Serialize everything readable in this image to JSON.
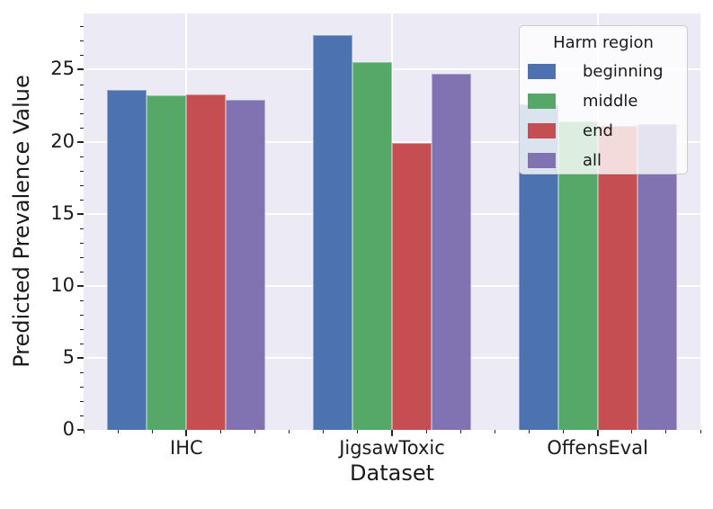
{
  "figure": {
    "background": "#ffffff",
    "plot_background": "#eceaf4",
    "grid_color": "#ffffff",
    "tick_color": "#262626",
    "text_color": "#1a1a1a"
  },
  "chart_data": {
    "type": "bar",
    "title": "",
    "xlabel": "Dataset",
    "ylabel": "Predicted Prevalence Value",
    "categories": [
      "IHC",
      "JigsawToxic",
      "OffensEval"
    ],
    "series": [
      {
        "name": "beginning",
        "color": "#4c72b0",
        "values": [
          23.6,
          27.4,
          22.6
        ]
      },
      {
        "name": "middle",
        "color": "#55a868",
        "values": [
          23.2,
          25.5,
          21.4
        ]
      },
      {
        "name": "end",
        "color": "#c44e52",
        "values": [
          23.3,
          19.9,
          21.1
        ]
      },
      {
        "name": "all",
        "color": "#8172b2",
        "values": [
          22.9,
          24.7,
          21.2
        ]
      }
    ],
    "legend": {
      "title": "Harm region",
      "position": "upper right"
    },
    "ylim": [
      0,
      28.9
    ],
    "yticks": [
      0,
      5,
      10,
      15,
      20,
      25
    ],
    "y_minor_tick_step": 1,
    "grid": true,
    "style": "seaborn-darkgrid"
  }
}
